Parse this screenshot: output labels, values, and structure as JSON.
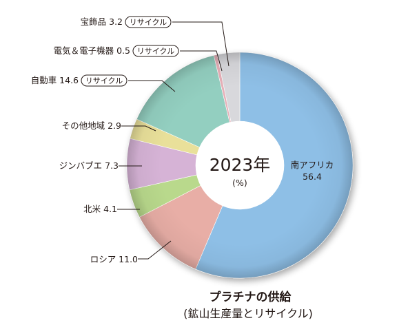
{
  "chart_data": {
    "type": "pie",
    "style": "donut",
    "unit": "(%)",
    "center_label": "2023年",
    "center_unit": "(%)",
    "title": "プラチナの供給",
    "subtitle": "(鉱山生産量とリサイクル)",
    "slices": [
      {
        "name": "南アフリカ",
        "value": 56.4,
        "color": "#8ebfe6",
        "tag": ""
      },
      {
        "name": "ロシア",
        "value": 11.0,
        "color": "#e8aea6",
        "tag": ""
      },
      {
        "name": "北米",
        "value": 4.1,
        "color": "#b9d98c",
        "tag": ""
      },
      {
        "name": "ジンバブエ",
        "value": 7.3,
        "color": "#d6b3d6",
        "tag": ""
      },
      {
        "name": "その他地域",
        "value": 2.9,
        "color": "#e9e09a",
        "tag": ""
      },
      {
        "name": "自動車",
        "value": 14.6,
        "color": "#93cfc0",
        "tag": "リサイクル"
      },
      {
        "name": "電気＆電子機器",
        "value": 0.5,
        "color": "#e6b0b8",
        "tag": "リサイクル"
      },
      {
        "name": "宝飾品",
        "value": 3.2,
        "color": "#d8d8dc",
        "tag": "リサイクル"
      }
    ]
  }
}
